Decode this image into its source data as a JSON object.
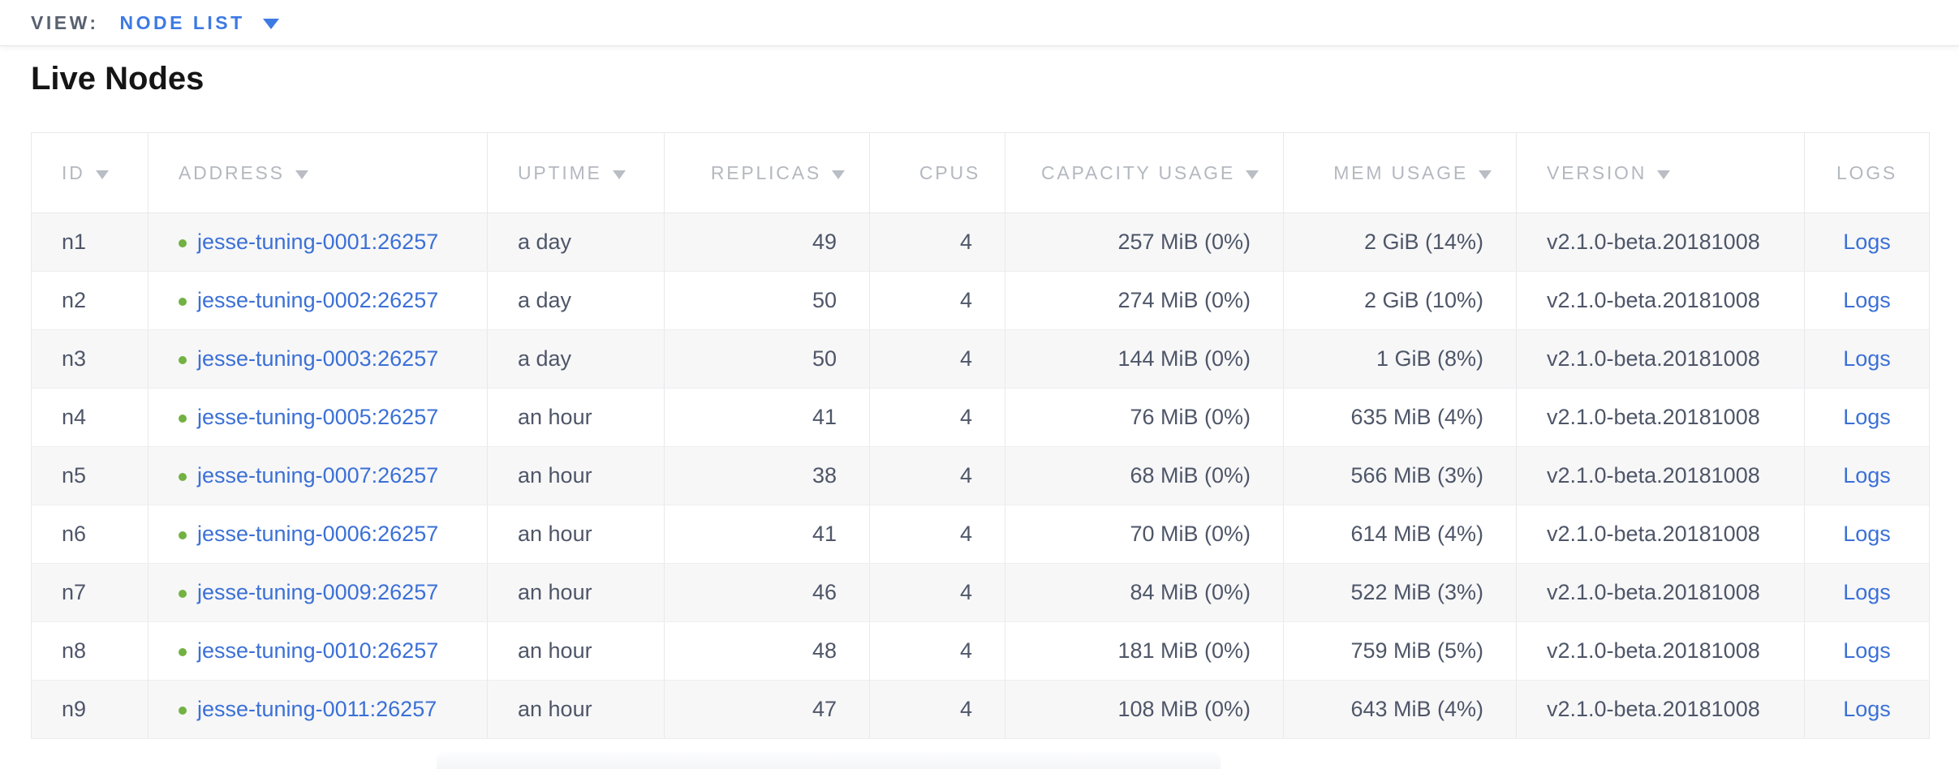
{
  "view_bar": {
    "label": "VIEW:",
    "selected": "NODE LIST",
    "dropdown_icon": "chevron-down-icon"
  },
  "page": {
    "title": "Live Nodes"
  },
  "colors": {
    "link_blue": "#3b70d6",
    "view_selector_blue": "#3d7ae3",
    "healthy_green": "#72b142",
    "header_text_gray": "#b4b8bf",
    "cell_text_slate": "#4e5668",
    "row_stripe": "#f7f7f8",
    "table_border": "#e9e9ec"
  },
  "table": {
    "sort_arrow_direction": "down",
    "columns": [
      {
        "key": "id",
        "label": "ID",
        "sortable": true,
        "align": "left"
      },
      {
        "key": "address",
        "label": "ADDRESS",
        "sortable": true,
        "align": "left"
      },
      {
        "key": "uptime",
        "label": "UPTIME",
        "sortable": true,
        "align": "left"
      },
      {
        "key": "replicas",
        "label": "REPLICAS",
        "sortable": true,
        "align": "right"
      },
      {
        "key": "cpus",
        "label": "CPUS",
        "sortable": false,
        "align": "right"
      },
      {
        "key": "capacity",
        "label": "CAPACITY USAGE",
        "sortable": true,
        "align": "right"
      },
      {
        "key": "mem",
        "label": "MEM USAGE",
        "sortable": true,
        "align": "right"
      },
      {
        "key": "version",
        "label": "VERSION",
        "sortable": true,
        "align": "left"
      },
      {
        "key": "logs",
        "label": "LOGS",
        "sortable": false,
        "align": "center"
      }
    ],
    "rows": [
      {
        "id": "n1",
        "status": "healthy",
        "address": "jesse-tuning-0001:26257",
        "uptime": "a day",
        "replicas": "49",
        "cpus": "4",
        "capacity": "257 MiB (0%)",
        "mem": "2 GiB (14%)",
        "version": "v2.1.0-beta.20181008",
        "logs": "Logs"
      },
      {
        "id": "n2",
        "status": "healthy",
        "address": "jesse-tuning-0002:26257",
        "uptime": "a day",
        "replicas": "50",
        "cpus": "4",
        "capacity": "274 MiB (0%)",
        "mem": "2 GiB (10%)",
        "version": "v2.1.0-beta.20181008",
        "logs": "Logs"
      },
      {
        "id": "n3",
        "status": "healthy",
        "address": "jesse-tuning-0003:26257",
        "uptime": "a day",
        "replicas": "50",
        "cpus": "4",
        "capacity": "144 MiB (0%)",
        "mem": "1 GiB (8%)",
        "version": "v2.1.0-beta.20181008",
        "logs": "Logs"
      },
      {
        "id": "n4",
        "status": "healthy",
        "address": "jesse-tuning-0005:26257",
        "uptime": "an hour",
        "replicas": "41",
        "cpus": "4",
        "capacity": "76 MiB (0%)",
        "mem": "635 MiB (4%)",
        "version": "v2.1.0-beta.20181008",
        "logs": "Logs"
      },
      {
        "id": "n5",
        "status": "healthy",
        "address": "jesse-tuning-0007:26257",
        "uptime": "an hour",
        "replicas": "38",
        "cpus": "4",
        "capacity": "68 MiB (0%)",
        "mem": "566 MiB (3%)",
        "version": "v2.1.0-beta.20181008",
        "logs": "Logs"
      },
      {
        "id": "n6",
        "status": "healthy",
        "address": "jesse-tuning-0006:26257",
        "uptime": "an hour",
        "replicas": "41",
        "cpus": "4",
        "capacity": "70 MiB (0%)",
        "mem": "614 MiB (4%)",
        "version": "v2.1.0-beta.20181008",
        "logs": "Logs"
      },
      {
        "id": "n7",
        "status": "healthy",
        "address": "jesse-tuning-0009:26257",
        "uptime": "an hour",
        "replicas": "46",
        "cpus": "4",
        "capacity": "84 MiB (0%)",
        "mem": "522 MiB (3%)",
        "version": "v2.1.0-beta.20181008",
        "logs": "Logs"
      },
      {
        "id": "n8",
        "status": "healthy",
        "address": "jesse-tuning-0010:26257",
        "uptime": "an hour",
        "replicas": "48",
        "cpus": "4",
        "capacity": "181 MiB (0%)",
        "mem": "759 MiB (5%)",
        "version": "v2.1.0-beta.20181008",
        "logs": "Logs"
      },
      {
        "id": "n9",
        "status": "healthy",
        "address": "jesse-tuning-0011:26257",
        "uptime": "an hour",
        "replicas": "47",
        "cpus": "4",
        "capacity": "108 MiB (0%)",
        "mem": "643 MiB (4%)",
        "version": "v2.1.0-beta.20181008",
        "logs": "Logs"
      }
    ]
  }
}
